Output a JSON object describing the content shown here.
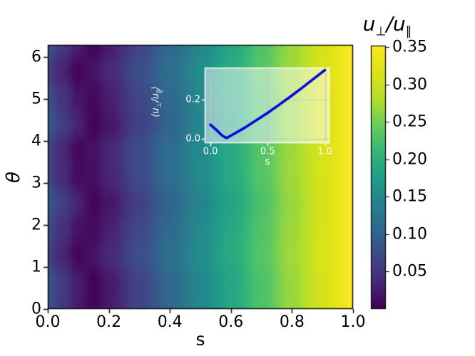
{
  "figure": {
    "background": "#ffffff"
  },
  "chart_data": [
    {
      "type": "heatmap",
      "name": "u-perp-over-u-parallel-field",
      "xlabel": "s",
      "ylabel": "θ",
      "xlim": [
        0,
        1
      ],
      "ylim": [
        0,
        6.28319
      ],
      "x_ticks": [
        0,
        0.2,
        0.4,
        0.6,
        0.8,
        1.0
      ],
      "x_tick_labels": [
        "0.0",
        "0.2",
        "0.4",
        "0.6",
        "0.8",
        "1.0"
      ],
      "y_ticks": [
        0,
        1,
        2,
        3,
        4,
        5,
        6
      ],
      "y_tick_labels": [
        "0",
        "1",
        "2",
        "3",
        "4",
        "5",
        "6"
      ],
      "colormap": "viridis",
      "vmin": 0.0,
      "vmax": 0.352,
      "s_grid": [
        0,
        0.05,
        0.1,
        0.15,
        0.2,
        0.3,
        0.4,
        0.5,
        0.6,
        0.7,
        0.8,
        0.9,
        1.0
      ],
      "theta_grid": [
        0,
        0.62832,
        1.25664,
        1.88496,
        2.51327,
        3.14159,
        3.76991,
        4.39823,
        5.02655,
        5.65487,
        6.28319
      ],
      "values": [
        [
          0.08,
          0.052,
          0.024,
          0.003,
          0.024,
          0.065,
          0.105,
          0.146,
          0.187,
          0.228,
          0.268,
          0.309,
          0.35
        ],
        [
          0.083,
          0.054,
          0.026,
          0.001,
          0.022,
          0.063,
          0.104,
          0.145,
          0.186,
          0.227,
          0.268,
          0.309,
          0.35
        ],
        [
          0.06,
          0.032,
          0.004,
          0.017,
          0.036,
          0.076,
          0.115,
          0.154,
          0.193,
          0.232,
          0.272,
          0.311,
          0.35
        ],
        [
          0.071,
          0.043,
          0.015,
          0.009,
          0.029,
          0.069,
          0.109,
          0.15,
          0.19,
          0.23,
          0.27,
          0.31,
          0.35
        ],
        [
          0.087,
          0.059,
          0.031,
          0.003,
          0.019,
          0.06,
          0.101,
          0.143,
          0.184,
          0.226,
          0.267,
          0.309,
          0.35
        ],
        [
          0.066,
          0.038,
          0.01,
          0.013,
          0.033,
          0.072,
          0.112,
          0.152,
          0.191,
          0.231,
          0.271,
          0.31,
          0.35
        ],
        [
          0.063,
          0.035,
          0.007,
          0.015,
          0.034,
          0.074,
          0.113,
          0.153,
          0.192,
          0.232,
          0.271,
          0.311,
          0.35
        ],
        [
          0.086,
          0.058,
          0.03,
          0.002,
          0.019,
          0.061,
          0.102,
          0.144,
          0.185,
          0.226,
          0.268,
          0.309,
          0.35
        ],
        [
          0.075,
          0.047,
          0.019,
          0.007,
          0.027,
          0.067,
          0.108,
          0.148,
          0.189,
          0.229,
          0.269,
          0.31,
          0.35
        ],
        [
          0.059,
          0.031,
          0.003,
          0.018,
          0.037,
          0.076,
          0.115,
          0.154,
          0.194,
          0.233,
          0.272,
          0.311,
          0.35
        ],
        [
          0.08,
          0.052,
          0.024,
          0.003,
          0.024,
          0.065,
          0.105,
          0.146,
          0.187,
          0.228,
          0.268,
          0.309,
          0.35
        ]
      ],
      "colorbar": {
        "title_base1": "u",
        "title_sub1": "⊥",
        "title_base2": "/u",
        "title_sub2": "∥",
        "ticks": [
          0.05,
          0.1,
          0.15,
          0.2,
          0.25,
          0.3,
          0.35
        ],
        "tick_labels": [
          "0.05",
          "0.10",
          "0.15",
          "0.20",
          "0.25",
          "0.30",
          "0.35"
        ]
      }
    },
    {
      "type": "line",
      "name": "theta-averaged-ratio-inset",
      "xlabel": "s",
      "ylabel_parts": {
        "p1": "⟨u",
        "s1": "⊥",
        "p2": "/u",
        "s2": "∥",
        "p3": "⟩"
      },
      "xlim": [
        -0.05,
        1.04
      ],
      "ylim": [
        -0.02,
        0.362
      ],
      "x_ticks": [
        0,
        0.5,
        1.0
      ],
      "x_tick_labels": [
        "0.0",
        "0.5",
        "1.0"
      ],
      "y_ticks": [
        0,
        0.2
      ],
      "y_tick_labels": [
        "0.0",
        "0.2"
      ],
      "line_color": "#0000dd",
      "grid": true,
      "background": "rgba(255,255,255,0.5)",
      "x": [
        0.0,
        0.05,
        0.1,
        0.14,
        0.2,
        0.3,
        0.4,
        0.5,
        0.6,
        0.7,
        0.8,
        0.9,
        1.0
      ],
      "y": [
        0.073,
        0.048,
        0.02,
        0.005,
        0.025,
        0.058,
        0.095,
        0.133,
        0.174,
        0.216,
        0.26,
        0.305,
        0.35
      ]
    }
  ]
}
